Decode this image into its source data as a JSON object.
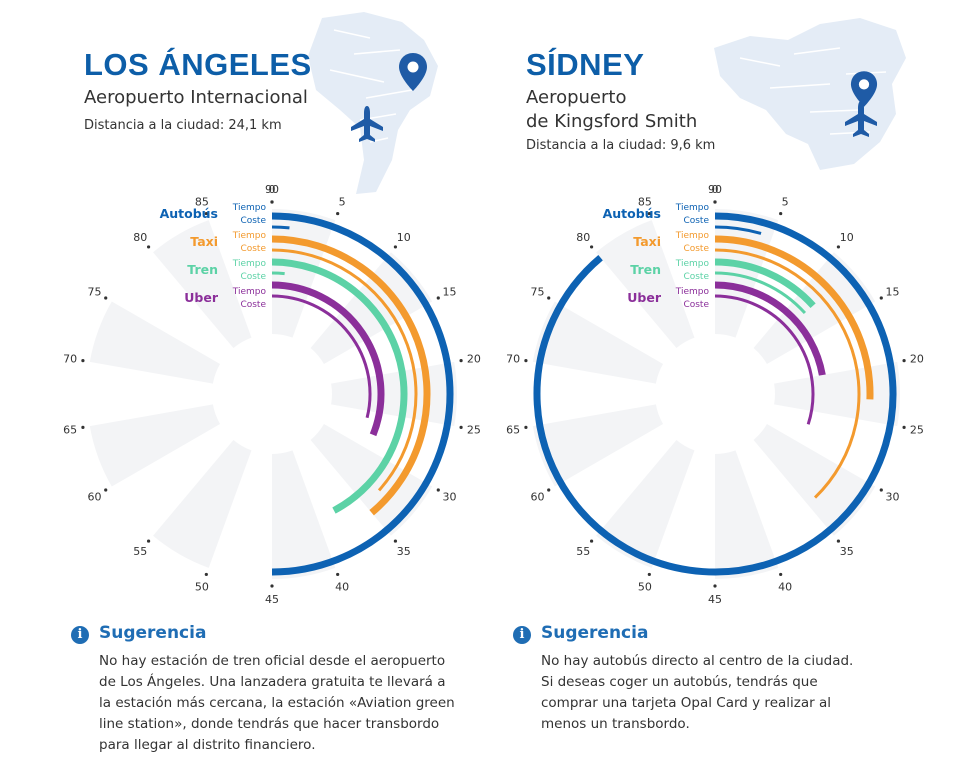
{
  "colors": {
    "autobus": "#0d62b3",
    "taxi": "#f39a2e",
    "tren": "#5cd2a6",
    "uber": "#8b2f9a",
    "title": "#0d5ea8",
    "map": "#e4ecf6",
    "icon": "#1f5ba6"
  },
  "los_angeles": {
    "title": "LOS ÁNGELES",
    "airport_lines": [
      "Aeropuerto Internacional"
    ],
    "distance": "Distancia a la ciudad: 24,1 km",
    "tip_title": "Sugerencia",
    "tip_lines": [
      "No hay estación de tren oficial desde el aeropuerto",
      "de Los Ángeles. Una lanzadera gratuita te llevará a",
      "la estación más cercana, la estación «Aviation green",
      "line station», donde tendrás que hacer transbordo",
      "para llegar al distrito financiero."
    ]
  },
  "sidney": {
    "title": "SÍDNEY",
    "airport_lines": [
      "Aeropuerto",
      "de Kingsford Smith"
    ],
    "distance": "Distancia a la ciudad: 9,6 km",
    "tip_title": "Sugerencia",
    "tip_lines": [
      "No hay autobús directo al centro de la ciudad.",
      "Si deseas coger un autobús, tendrás que",
      "comprar una tarjeta Opal Card y realizar al",
      "menos un transbordo."
    ]
  },
  "chart_data": [
    {
      "type": "radial-bar",
      "title": "LOS ÁNGELES",
      "scale_max": 90,
      "ticks": [
        0,
        5,
        10,
        15,
        20,
        25,
        30,
        35,
        40,
        45,
        50,
        55,
        60,
        65,
        70,
        75,
        80,
        85,
        90
      ],
      "legend": [
        {
          "name": "Autobús",
          "color_key": "autobus"
        },
        {
          "name": "Taxi",
          "color_key": "taxi"
        },
        {
          "name": "Tren",
          "color_key": "tren"
        },
        {
          "name": "Uber",
          "color_key": "uber"
        }
      ],
      "metric_labels": [
        "Tiempo",
        "Coste"
      ],
      "series": [
        {
          "name": "Autobús",
          "metric": "Tiempo",
          "value": 45
        },
        {
          "name": "Autobús",
          "metric": "Coste",
          "value": 1.5
        },
        {
          "name": "Taxi",
          "metric": "Tiempo",
          "value": 35
        },
        {
          "name": "Taxi",
          "metric": "Coste",
          "value": 33
        },
        {
          "name": "Tren",
          "metric": "Tiempo",
          "value": 38
        },
        {
          "name": "Tren",
          "metric": "Coste",
          "value": 1.5
        },
        {
          "name": "Uber",
          "metric": "Tiempo",
          "value": 28
        },
        {
          "name": "Uber",
          "metric": "Coste",
          "value": 26
        }
      ]
    },
    {
      "type": "radial-bar",
      "title": "SÍDNEY",
      "scale_max": 90,
      "ticks": [
        0,
        5,
        10,
        15,
        20,
        25,
        30,
        35,
        40,
        45,
        50,
        55,
        60,
        65,
        70,
        75,
        80,
        85,
        90
      ],
      "legend": [
        {
          "name": "Autobús",
          "color_key": "autobus"
        },
        {
          "name": "Taxi",
          "color_key": "taxi"
        },
        {
          "name": "Tren",
          "color_key": "tren"
        },
        {
          "name": "Uber",
          "color_key": "uber"
        }
      ],
      "metric_labels": [
        "Tiempo",
        "Coste"
      ],
      "series": [
        {
          "name": "Autobús",
          "metric": "Tiempo",
          "value": 80
        },
        {
          "name": "Autobús",
          "metric": "Coste",
          "value": 4
        },
        {
          "name": "Taxi",
          "metric": "Tiempo",
          "value": 23
        },
        {
          "name": "Taxi",
          "metric": "Coste",
          "value": 34
        },
        {
          "name": "Tren",
          "metric": "Tiempo",
          "value": 12
        },
        {
          "name": "Tren",
          "metric": "Coste",
          "value": 12
        },
        {
          "name": "Uber",
          "metric": "Tiempo",
          "value": 20
        },
        {
          "name": "Uber",
          "metric": "Coste",
          "value": 27
        }
      ]
    }
  ]
}
